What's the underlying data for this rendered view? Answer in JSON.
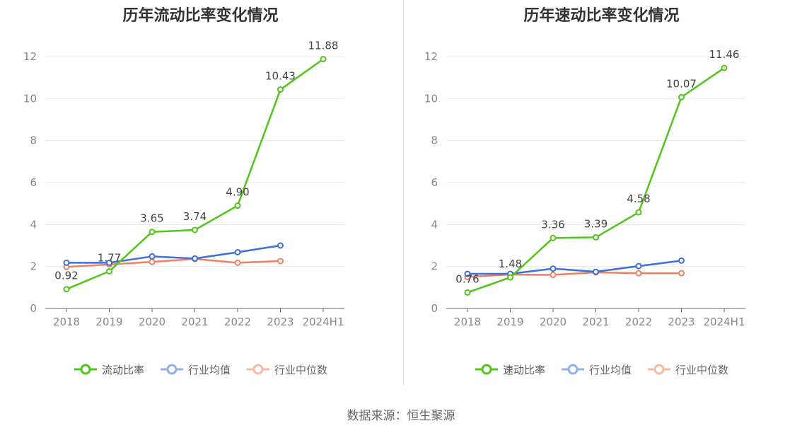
{
  "source_note": "数据来源：恒生聚源",
  "colors": {
    "primary": "#52c41a",
    "average": "#3b6fd9",
    "median": "#f08060",
    "grid": "#e8e8e8",
    "axis": "#666666"
  },
  "chart_data": [
    {
      "type": "line",
      "title": "历年流动比率变化情况",
      "categories": [
        "2018",
        "2019",
        "2020",
        "2021",
        "2022",
        "2023",
        "2024H1"
      ],
      "ylim": [
        0,
        12
      ],
      "yticks": [
        0,
        2,
        4,
        6,
        8,
        10,
        12
      ],
      "grid": true,
      "legend_position": "bottom",
      "series": [
        {
          "name": "流动比率",
          "values": [
            0.92,
            1.77,
            3.65,
            3.74,
            4.9,
            10.43,
            11.88
          ],
          "labels": [
            "0.92",
            "1.77",
            "3.65",
            "3.74",
            "4.90",
            "10.43",
            "11.88"
          ]
        },
        {
          "name": "行业均值",
          "values": [
            2.18,
            2.18,
            2.48,
            2.38,
            2.68,
            3.0,
            null
          ]
        },
        {
          "name": "行业中位数",
          "values": [
            1.98,
            2.1,
            2.22,
            2.36,
            2.18,
            2.26,
            null
          ]
        }
      ]
    },
    {
      "type": "line",
      "title": "历年速动比率变化情况",
      "categories": [
        "2018",
        "2019",
        "2020",
        "2021",
        "2022",
        "2023",
        "2024H1"
      ],
      "ylim": [
        0,
        12
      ],
      "yticks": [
        0,
        2,
        4,
        6,
        8,
        10,
        12
      ],
      "grid": true,
      "legend_position": "bottom",
      "series": [
        {
          "name": "速动比率",
          "values": [
            0.76,
            1.48,
            3.36,
            3.39,
            4.58,
            10.07,
            11.46
          ],
          "labels": [
            "0.76",
            "1.48",
            "3.36",
            "3.39",
            "4.58",
            "10.07",
            "11.46"
          ]
        },
        {
          "name": "行业均值",
          "values": [
            1.65,
            1.65,
            1.9,
            1.75,
            2.02,
            2.28,
            null
          ]
        },
        {
          "name": "行业中位数",
          "values": [
            1.5,
            1.62,
            1.6,
            1.72,
            1.68,
            1.68,
            null
          ]
        }
      ]
    }
  ]
}
